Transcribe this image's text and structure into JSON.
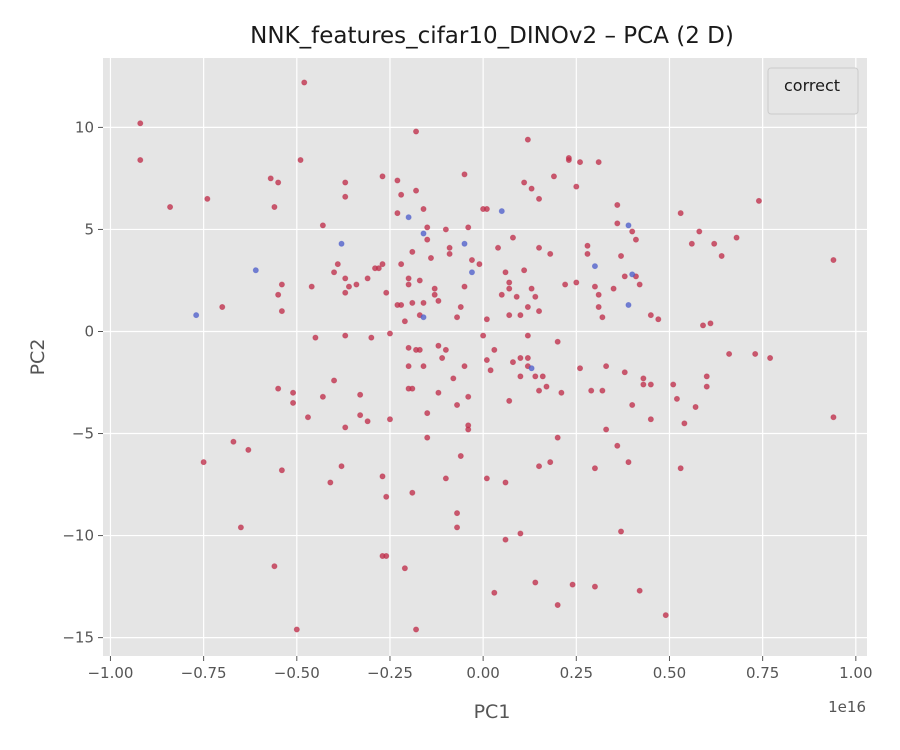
{
  "chart_data": {
    "type": "scatter",
    "title": "NNK_features_cifar10_DINOv2 – PCA (2 D)",
    "xlabel": "PC1",
    "ylabel": "PC2",
    "x_scale_note": "1e16",
    "xlim": [
      -1.02,
      1.03
    ],
    "ylim": [
      -15.9,
      13.4
    ],
    "xticks": [
      -1.0,
      -0.75,
      -0.5,
      -0.25,
      0.0,
      0.25,
      0.5,
      0.75,
      1.0
    ],
    "xtick_labels": [
      "−1.00",
      "−0.75",
      "−0.50",
      "−0.25",
      "0.00",
      "0.25",
      "0.50",
      "0.75",
      "1.00"
    ],
    "yticks": [
      -15,
      -10,
      -5,
      0,
      5,
      10
    ],
    "ytick_labels": [
      "−15",
      "−10",
      "−5",
      "0",
      "5",
      "10"
    ],
    "grid": true,
    "legend": {
      "title": "correct",
      "placement": "top-right"
    },
    "colors": {
      "red": "#c0304c",
      "blue": "#5060cc",
      "background": "#e5e5e5",
      "grid": "#ffffff"
    },
    "series": [
      {
        "color": "red",
        "points": [
          [
            -0.92,
            10.2
          ],
          [
            -0.92,
            8.4
          ],
          [
            -0.84,
            6.1
          ],
          [
            -0.74,
            6.5
          ],
          [
            -0.7,
            1.2
          ],
          [
            -0.75,
            -6.4
          ],
          [
            -0.67,
            -5.4
          ],
          [
            -0.65,
            -9.6
          ],
          [
            -0.63,
            -5.8
          ],
          [
            -0.57,
            7.5
          ],
          [
            -0.55,
            7.3
          ],
          [
            -0.56,
            6.1
          ],
          [
            -0.55,
            1.8
          ],
          [
            -0.54,
            2.3
          ],
          [
            -0.54,
            1.0
          ],
          [
            -0.55,
            -2.8
          ],
          [
            -0.54,
            -6.8
          ],
          [
            -0.56,
            -11.5
          ],
          [
            -0.51,
            -3.0
          ],
          [
            -0.51,
            -3.5
          ],
          [
            -0.5,
            -14.6
          ],
          [
            -0.49,
            8.4
          ],
          [
            -0.48,
            12.2
          ],
          [
            -0.47,
            -4.2
          ],
          [
            -0.46,
            2.2
          ],
          [
            -0.45,
            -0.3
          ],
          [
            -0.43,
            5.2
          ],
          [
            -0.43,
            -3.2
          ],
          [
            -0.41,
            -7.4
          ],
          [
            -0.4,
            -2.4
          ],
          [
            -0.4,
            2.9
          ],
          [
            -0.39,
            3.3
          ],
          [
            -0.38,
            -6.6
          ],
          [
            -0.37,
            -4.7
          ],
          [
            -0.37,
            7.3
          ],
          [
            -0.37,
            6.6
          ],
          [
            -0.37,
            2.6
          ],
          [
            -0.37,
            1.9
          ],
          [
            -0.37,
            -0.2
          ],
          [
            -0.36,
            2.2
          ],
          [
            -0.34,
            2.3
          ],
          [
            -0.33,
            -3.1
          ],
          [
            -0.31,
            2.6
          ],
          [
            -0.33,
            -4.1
          ],
          [
            -0.31,
            -4.4
          ],
          [
            -0.29,
            3.1
          ],
          [
            -0.28,
            3.1
          ],
          [
            -0.27,
            3.3
          ],
          [
            -0.27,
            7.6
          ],
          [
            -0.27,
            -7.1
          ],
          [
            -0.27,
            -11.0
          ],
          [
            -0.26,
            -11.0
          ],
          [
            -0.26,
            -8.1
          ],
          [
            -0.25,
            -0.1
          ],
          [
            -0.25,
            -4.3
          ],
          [
            -0.23,
            7.4
          ],
          [
            -0.23,
            1.3
          ],
          [
            -0.22,
            1.3
          ],
          [
            -0.22,
            6.7
          ],
          [
            -0.22,
            3.3
          ],
          [
            -0.21,
            0.5
          ],
          [
            -0.21,
            -11.6
          ],
          [
            -0.2,
            2.6
          ],
          [
            -0.2,
            2.3
          ],
          [
            -0.2,
            -0.8
          ],
          [
            -0.2,
            -1.7
          ],
          [
            -0.2,
            -2.8
          ],
          [
            -0.19,
            -7.9
          ],
          [
            -0.19,
            3.9
          ],
          [
            -0.19,
            1.4
          ],
          [
            -0.19,
            -2.8
          ],
          [
            -0.18,
            9.8
          ],
          [
            -0.18,
            6.9
          ],
          [
            -0.18,
            -0.9
          ],
          [
            -0.18,
            -14.6
          ],
          [
            -0.17,
            2.5
          ],
          [
            -0.17,
            0.8
          ],
          [
            -0.17,
            -0.9
          ],
          [
            -0.16,
            1.4
          ],
          [
            -0.16,
            6.0
          ],
          [
            -0.16,
            -1.7
          ],
          [
            -0.15,
            5.1
          ],
          [
            -0.15,
            4.5
          ],
          [
            -0.15,
            -5.2
          ],
          [
            -0.15,
            -4.0
          ],
          [
            -0.14,
            3.6
          ],
          [
            -0.13,
            2.1
          ],
          [
            -0.13,
            1.8
          ],
          [
            -0.12,
            1.5
          ],
          [
            -0.12,
            -0.7
          ],
          [
            -0.12,
            -3.0
          ],
          [
            -0.11,
            -1.3
          ],
          [
            -0.1,
            -0.9
          ],
          [
            -0.1,
            -7.2
          ],
          [
            -0.1,
            5.0
          ],
          [
            -0.09,
            4.1
          ],
          [
            -0.09,
            3.8
          ],
          [
            -0.08,
            -2.3
          ],
          [
            -0.07,
            -3.6
          ],
          [
            -0.06,
            1.2
          ],
          [
            -0.07,
            0.7
          ],
          [
            -0.06,
            -6.1
          ],
          [
            -0.07,
            -8.9
          ],
          [
            -0.07,
            -9.6
          ],
          [
            -0.05,
            7.7
          ],
          [
            -0.05,
            2.2
          ],
          [
            -0.04,
            -3.2
          ],
          [
            -0.04,
            -4.6
          ],
          [
            -0.04,
            -4.8
          ],
          [
            -0.04,
            5.1
          ],
          [
            -0.03,
            3.5
          ],
          [
            -0.01,
            3.3
          ],
          [
            0.0,
            6.0
          ],
          [
            0.01,
            6.0
          ],
          [
            0.0,
            -0.2
          ],
          [
            0.01,
            -1.4
          ],
          [
            0.01,
            0.6
          ],
          [
            0.01,
            -7.2
          ],
          [
            0.03,
            -12.8
          ],
          [
            0.04,
            4.1
          ],
          [
            0.05,
            1.8
          ],
          [
            0.06,
            2.9
          ],
          [
            0.06,
            -7.4
          ],
          [
            0.06,
            -10.2
          ],
          [
            0.07,
            2.4
          ],
          [
            0.07,
            2.1
          ],
          [
            0.07,
            0.8
          ],
          [
            0.07,
            -3.4
          ],
          [
            0.08,
            4.6
          ],
          [
            0.08,
            -1.5
          ],
          [
            0.09,
            1.7
          ],
          [
            0.1,
            0.8
          ],
          [
            0.1,
            -2.2
          ],
          [
            0.1,
            -9.9
          ],
          [
            0.1,
            -1.3
          ],
          [
            0.11,
            7.3
          ],
          [
            0.11,
            3.0
          ],
          [
            0.12,
            1.2
          ],
          [
            0.12,
            -0.2
          ],
          [
            0.12,
            -1.3
          ],
          [
            0.12,
            -1.7
          ],
          [
            0.12,
            9.4
          ],
          [
            0.13,
            7.0
          ],
          [
            0.13,
            2.1
          ],
          [
            0.14,
            1.7
          ],
          [
            0.14,
            -2.2
          ],
          [
            0.14,
            -12.3
          ],
          [
            0.15,
            4.1
          ],
          [
            0.15,
            1.0
          ],
          [
            0.15,
            6.5
          ],
          [
            0.15,
            -6.6
          ],
          [
            0.15,
            -2.9
          ],
          [
            0.16,
            -2.2
          ],
          [
            0.17,
            -2.7
          ],
          [
            0.18,
            3.8
          ],
          [
            0.18,
            -6.4
          ],
          [
            0.19,
            7.6
          ],
          [
            0.2,
            -5.2
          ],
          [
            0.2,
            -13.4
          ],
          [
            0.21,
            -3.0
          ],
          [
            0.22,
            2.3
          ],
          [
            0.23,
            8.4
          ],
          [
            0.23,
            8.5
          ],
          [
            0.24,
            -12.4
          ],
          [
            0.25,
            7.1
          ],
          [
            0.25,
            2.4
          ],
          [
            0.26,
            8.3
          ],
          [
            0.26,
            -1.8
          ],
          [
            0.28,
            3.8
          ],
          [
            0.28,
            4.2
          ],
          [
            0.29,
            -2.9
          ],
          [
            0.3,
            -12.5
          ],
          [
            0.3,
            -6.7
          ],
          [
            0.3,
            2.2
          ],
          [
            0.31,
            8.3
          ],
          [
            0.31,
            1.8
          ],
          [
            0.31,
            1.2
          ],
          [
            0.32,
            0.7
          ],
          [
            0.32,
            -2.9
          ],
          [
            0.33,
            -1.7
          ],
          [
            0.33,
            -4.8
          ],
          [
            0.35,
            2.1
          ],
          [
            0.36,
            5.3
          ],
          [
            0.36,
            6.2
          ],
          [
            0.36,
            -5.6
          ],
          [
            0.37,
            -9.8
          ],
          [
            0.37,
            3.7
          ],
          [
            0.38,
            2.7
          ],
          [
            0.38,
            -2.0
          ],
          [
            0.39,
            -6.4
          ],
          [
            0.4,
            4.9
          ],
          [
            0.4,
            -3.6
          ],
          [
            0.41,
            2.7
          ],
          [
            0.41,
            4.5
          ],
          [
            0.42,
            2.3
          ],
          [
            0.42,
            -12.7
          ],
          [
            0.43,
            -2.6
          ],
          [
            0.43,
            -2.3
          ],
          [
            0.45,
            0.8
          ],
          [
            0.45,
            -2.6
          ],
          [
            0.45,
            -4.3
          ],
          [
            0.47,
            0.6
          ],
          [
            0.49,
            -13.9
          ],
          [
            0.51,
            -2.6
          ],
          [
            0.52,
            -3.3
          ],
          [
            0.53,
            5.8
          ],
          [
            0.53,
            -6.7
          ],
          [
            0.54,
            -4.5
          ],
          [
            0.56,
            4.3
          ],
          [
            0.57,
            -3.7
          ],
          [
            0.58,
            4.9
          ],
          [
            0.59,
            0.3
          ],
          [
            0.6,
            -2.7
          ],
          [
            0.6,
            -2.2
          ],
          [
            0.61,
            0.4
          ],
          [
            0.62,
            4.3
          ],
          [
            0.64,
            3.7
          ],
          [
            0.66,
            -1.1
          ],
          [
            0.68,
            4.6
          ],
          [
            0.74,
            6.4
          ],
          [
            0.73,
            -1.1
          ],
          [
            0.77,
            -1.3
          ],
          [
            0.94,
            3.5
          ],
          [
            0.94,
            -4.2
          ],
          [
            -0.05,
            -1.7
          ],
          [
            0.02,
            -1.9
          ],
          [
            0.03,
            -0.9
          ],
          [
            -0.26,
            1.9
          ],
          [
            -0.3,
            -0.3
          ],
          [
            0.2,
            -0.5
          ],
          [
            -0.23,
            5.8
          ]
        ]
      },
      {
        "color": "blue",
        "points": [
          [
            -0.77,
            0.8
          ],
          [
            -0.61,
            3.0
          ],
          [
            -0.38,
            4.3
          ],
          [
            -0.2,
            5.6
          ],
          [
            -0.16,
            4.8
          ],
          [
            -0.16,
            0.7
          ],
          [
            -0.05,
            4.3
          ],
          [
            -0.03,
            2.9
          ],
          [
            0.05,
            5.9
          ],
          [
            0.13,
            -1.8
          ],
          [
            0.3,
            3.2
          ],
          [
            0.39,
            5.2
          ],
          [
            0.4,
            2.8
          ],
          [
            0.39,
            1.3
          ]
        ]
      }
    ]
  }
}
